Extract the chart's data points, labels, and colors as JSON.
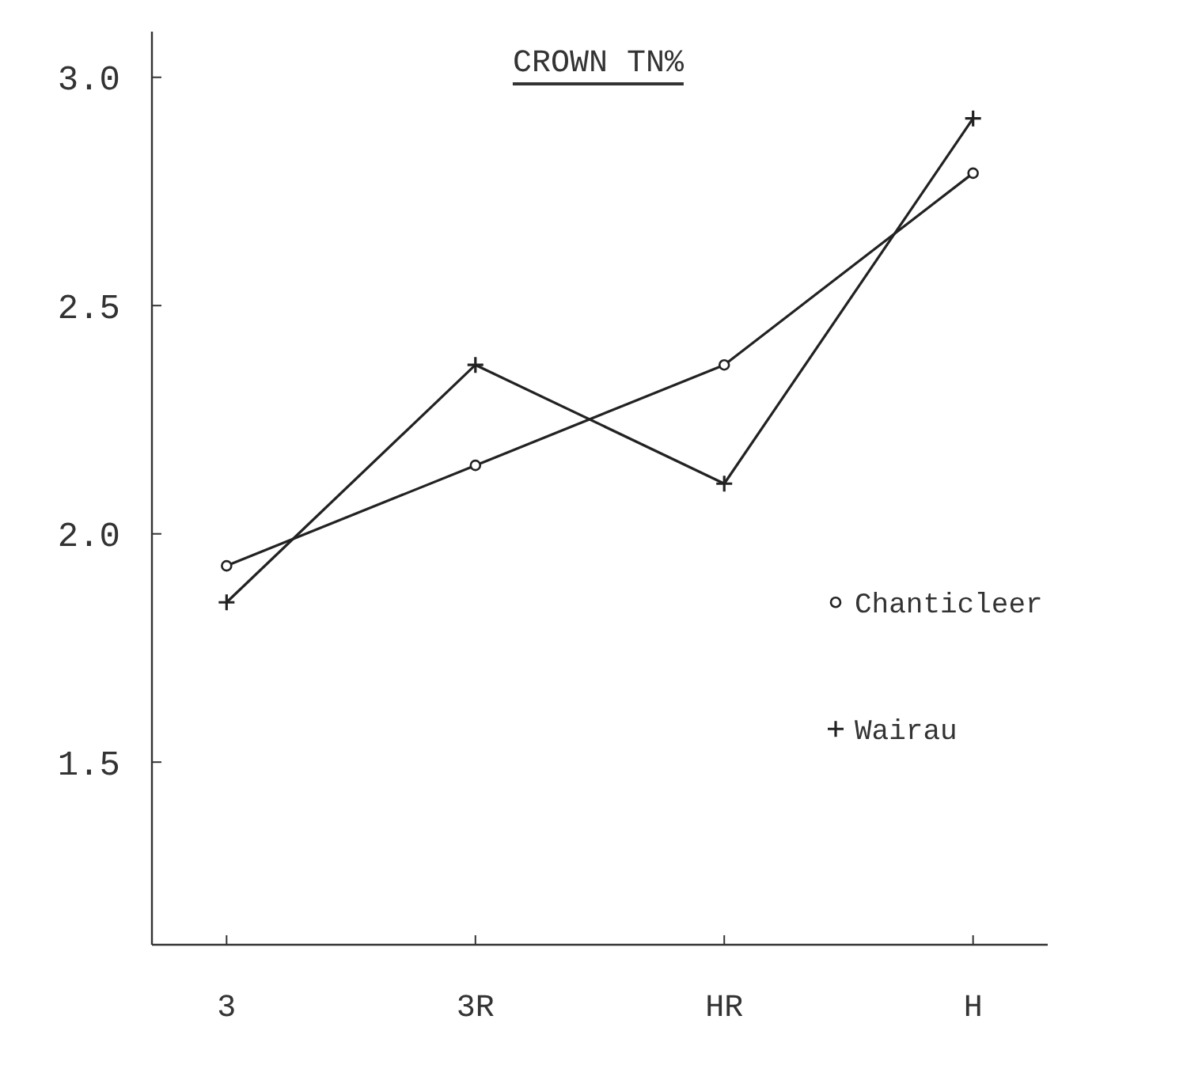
{
  "chart_data": {
    "type": "line",
    "title": "CROWN TN%",
    "categories": [
      "3",
      "3R",
      "HR",
      "H"
    ],
    "series": [
      {
        "name": "Chanticleer",
        "color": "#222222",
        "marker": "circle",
        "values": [
          1.93,
          2.15,
          2.37,
          2.79
        ]
      },
      {
        "name": "Wairau",
        "color": "#222222",
        "marker": "cross",
        "values": [
          1.85,
          2.37,
          2.11,
          2.91
        ]
      }
    ],
    "ylim": [
      1.1,
      3.1
    ],
    "yticks": [
      {
        "value": 1.5,
        "label": "1.5"
      },
      {
        "value": 2.0,
        "label": "2.0"
      },
      {
        "value": 2.5,
        "label": "2.5"
      },
      {
        "value": 3.0,
        "label": "3.0"
      }
    ],
    "grid": false,
    "legend": "right",
    "line_style": "solid"
  }
}
